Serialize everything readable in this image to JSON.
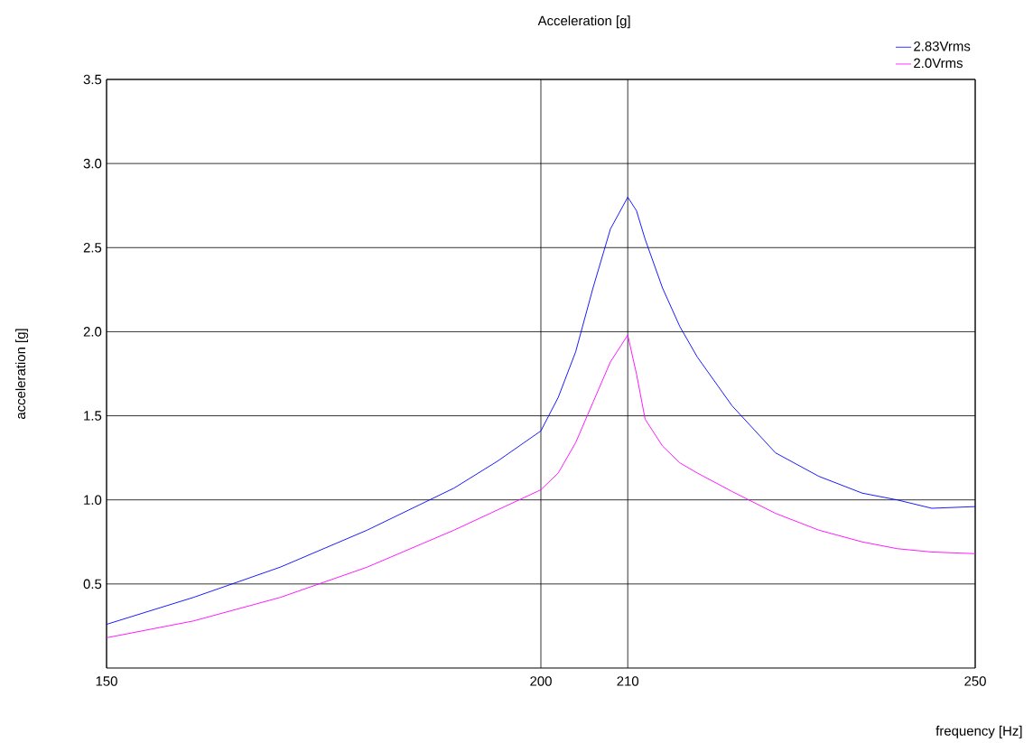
{
  "chart_data": {
    "type": "line",
    "title": "Acceleration [g]",
    "xlabel": "frequency [Hz]",
    "ylabel": "acceleration [g]",
    "xlim": [
      150,
      250
    ],
    "xticks": [
      150,
      200,
      210,
      250
    ],
    "ylim": [
      0,
      3.5
    ],
    "yticks": [
      0.5,
      {
        "value": 1,
        "label": "1.0"
      },
      1.5,
      {
        "value": 2,
        "label": "2.0"
      },
      2.5,
      {
        "value": 3,
        "label": "3.0"
      },
      3.5
    ],
    "grid": true,
    "legend": "top right",
    "x": [
      150,
      160,
      170,
      180,
      190,
      195,
      200,
      202,
      204,
      206,
      208,
      210,
      211,
      212,
      214,
      216,
      218,
      222,
      227,
      232,
      237,
      241,
      245,
      250
    ],
    "series": [
      {
        "name": "2.83Vrms",
        "color": "#0000ff",
        "values": [
          0.26,
          0.42,
          0.6,
          0.82,
          1.07,
          1.23,
          1.41,
          1.61,
          1.88,
          2.26,
          2.61,
          2.8,
          2.72,
          2.55,
          2.26,
          2.03,
          1.85,
          1.56,
          1.28,
          1.14,
          1.04,
          1.0,
          0.95,
          0.96
        ]
      },
      {
        "name": "2.0Vrms",
        "color": "#ff00ff",
        "values": [
          0.18,
          0.28,
          0.42,
          0.6,
          0.82,
          0.94,
          1.06,
          1.16,
          1.34,
          1.58,
          1.82,
          1.98,
          1.75,
          1.48,
          1.32,
          1.22,
          1.16,
          1.05,
          0.92,
          0.82,
          0.75,
          0.71,
          0.69,
          0.68
        ]
      }
    ]
  }
}
